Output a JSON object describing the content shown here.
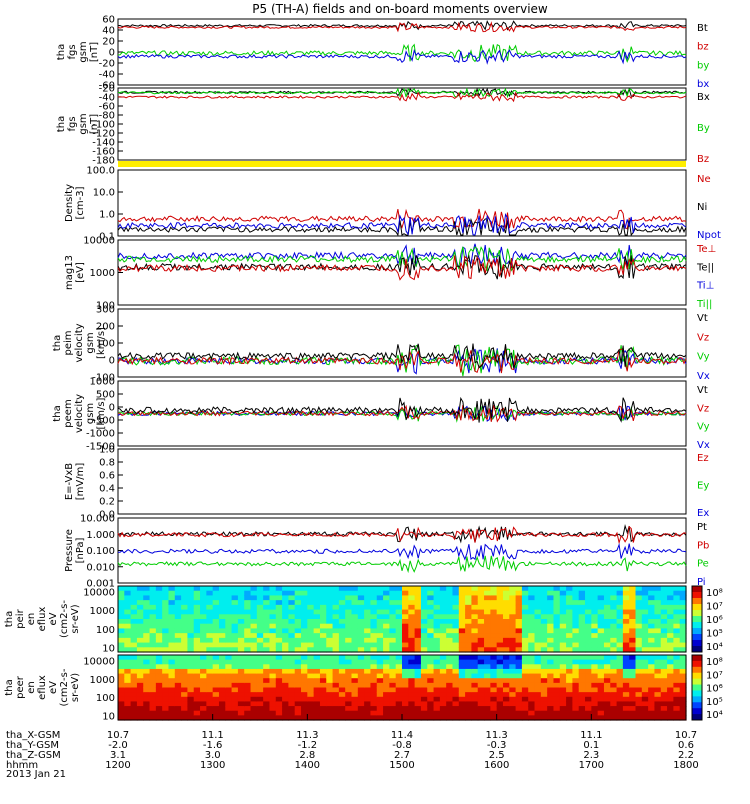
{
  "chart_data": {
    "type": "line",
    "title": "P5 (TH-A) fields and on-board moments overview",
    "panels": [
      {
        "id": "fgs",
        "ylabel": [
          "tha",
          "fgs",
          "gsm",
          "[nT]"
        ],
        "yticks": [
          "60",
          "40",
          "20",
          "0",
          "-20",
          "-40",
          "-60"
        ],
        "ylim": [
          -60,
          60
        ],
        "legend": [
          {
            "name": "Bt",
            "color": "#000000"
          },
          {
            "name": "bz",
            "color": "#d00000"
          },
          {
            "name": "by",
            "color": "#00cc00"
          },
          {
            "name": "bx",
            "color": "#0000dd"
          }
        ],
        "series": [
          {
            "name": "Bt",
            "base": 48,
            "noise": 2,
            "color": "#000000"
          },
          {
            "name": "bz",
            "base": 45,
            "noise": 2,
            "color": "#d00000"
          },
          {
            "name": "by",
            "base": -2,
            "noise": 4,
            "color": "#00cc00"
          },
          {
            "name": "bx",
            "base": -8,
            "noise": 3,
            "color": "#0000dd"
          }
        ]
      },
      {
        "id": "fgs2",
        "ylabel": [
          "tha",
          "fgs",
          "gsm",
          "[nT]"
        ],
        "yticks": [
          "-20",
          "-40",
          "-60",
          "-80",
          "-100",
          "-120",
          "-140",
          "-160",
          "-180"
        ],
        "ylim": [
          -190,
          10
        ],
        "legend": [
          {
            "name": "Bx",
            "color": "#000000"
          },
          {
            "name": "By",
            "color": "#00cc00"
          },
          {
            "name": "Bz",
            "color": "#d00000"
          }
        ],
        "series": [
          {
            "name": "Bx",
            "base": -2,
            "noise": 3,
            "color": "#000000"
          },
          {
            "name": "By",
            "base": -3,
            "noise": 3,
            "color": "#00cc00"
          },
          {
            "name": "Bz",
            "base": -15,
            "noise": 3,
            "color": "#d00000"
          }
        ]
      },
      {
        "id": "density",
        "ylabel": [
          "Density",
          "[cm-3]"
        ],
        "yticks": [
          "100.0",
          "10.0",
          "1.0",
          "0.1"
        ],
        "ylim": [
          0.1,
          100
        ],
        "log": true,
        "legend": [
          {
            "name": "Ne",
            "color": "#d00000"
          },
          {
            "name": "Ni",
            "color": "#000000"
          },
          {
            "name": "Npot",
            "color": "#0000dd"
          }
        ],
        "series": [
          {
            "name": "Ne",
            "base": 0.6,
            "noise": 0.3,
            "color": "#d00000"
          },
          {
            "name": "Ni",
            "base": 0.2,
            "noise": 0.1,
            "color": "#000000"
          },
          {
            "name": "Npot",
            "base": 0.3,
            "noise": 0.1,
            "color": "#0000dd"
          }
        ]
      },
      {
        "id": "temp",
        "ylabel": [
          "mag13",
          "[eV]"
        ],
        "yticks": [
          "10000",
          "1000",
          "100"
        ],
        "ylim": [
          30,
          10000
        ],
        "log": true,
        "legend": [
          {
            "name": "Te⊥",
            "color": "#d00000"
          },
          {
            "name": "Te||",
            "color": "#000000"
          },
          {
            "name": "Ti⊥",
            "color": "#0000dd"
          },
          {
            "name": "Ti||",
            "color": "#00cc00"
          }
        ],
        "series": [
          {
            "name": "Ti⊥",
            "base": 2500,
            "noise": 600,
            "color": "#0000dd"
          },
          {
            "name": "Ti||",
            "base": 1800,
            "noise": 500,
            "color": "#00cc00"
          },
          {
            "name": "Te||",
            "base": 900,
            "noise": 400,
            "color": "#000000"
          },
          {
            "name": "Te⊥",
            "base": 800,
            "noise": 400,
            "color": "#d00000"
          }
        ]
      },
      {
        "id": "peim",
        "ylabel": [
          "tha",
          "peim",
          "velocity",
          "gsm",
          "[km/s]"
        ],
        "yticks": [
          "300",
          "200",
          "100",
          "0",
          "-100"
        ],
        "ylim": [
          -100,
          320
        ],
        "legend": [
          {
            "name": "Vt",
            "color": "#000000"
          },
          {
            "name": "Vz",
            "color": "#d00000"
          },
          {
            "name": "Vy",
            "color": "#00cc00"
          },
          {
            "name": "Vx",
            "color": "#0000dd"
          }
        ],
        "series": [
          {
            "name": "Vx",
            "base": 0,
            "noise": 20,
            "color": "#0000dd"
          },
          {
            "name": "Vy",
            "base": 0,
            "noise": 25,
            "color": "#00cc00"
          },
          {
            "name": "Vz",
            "base": 0,
            "noise": 20,
            "color": "#d00000"
          },
          {
            "name": "Vt",
            "base": 30,
            "noise": 20,
            "color": "#000000"
          }
        ]
      },
      {
        "id": "peem",
        "ylabel": [
          "tha",
          "peem",
          "velocity",
          "gsm",
          "[km/s]"
        ],
        "yticks": [
          "1000",
          "500",
          "0",
          "-500",
          "-1000",
          "-1500"
        ],
        "ylim": [
          -1500,
          1500
        ],
        "legend": [
          {
            "name": "Vt",
            "color": "#000000"
          },
          {
            "name": "Vz",
            "color": "#d00000"
          },
          {
            "name": "Vy",
            "color": "#00cc00"
          },
          {
            "name": "Vx",
            "color": "#0000dd"
          }
        ],
        "series": [
          {
            "name": "Vx",
            "base": 0,
            "noise": 90,
            "color": "#0000dd"
          },
          {
            "name": "Vy",
            "base": 0,
            "noise": 90,
            "color": "#00cc00"
          },
          {
            "name": "Vz",
            "base": 0,
            "noise": 100,
            "color": "#d00000"
          },
          {
            "name": "Vt",
            "base": 150,
            "noise": 150,
            "color": "#000000"
          }
        ]
      },
      {
        "id": "efield",
        "ylabel": [
          "E=-VxB",
          "[mV/m]"
        ],
        "yticks": [
          "1.0",
          "0.8",
          "0.6",
          "0.4",
          "0.2",
          "0.0"
        ],
        "ylim": [
          0,
          1
        ],
        "legend": [
          {
            "name": "Ez",
            "color": "#d00000"
          },
          {
            "name": "Ey",
            "color": "#00cc00"
          },
          {
            "name": "Ex",
            "color": "#0000dd"
          }
        ],
        "series": []
      },
      {
        "id": "pressure",
        "ylabel": [
          "Pressure",
          "[nPa]"
        ],
        "yticks": [
          "10.000",
          "1.000",
          "0.100",
          "0.010",
          "0.001"
        ],
        "ylim": [
          0.001,
          10
        ],
        "log": true,
        "legend": [
          {
            "name": "Pt",
            "color": "#000000"
          },
          {
            "name": "Pb",
            "color": "#d00000"
          },
          {
            "name": "Pe",
            "color": "#00cc00"
          },
          {
            "name": "Pi",
            "color": "#0000dd"
          }
        ],
        "series": [
          {
            "name": "Pt",
            "base": 1.05,
            "noise": 0.05,
            "color": "#000000"
          },
          {
            "name": "Pb",
            "base": 0.95,
            "noise": 0.05,
            "color": "#d00000"
          },
          {
            "name": "Pi",
            "base": 0.09,
            "noise": 0.02,
            "color": "#0000dd"
          },
          {
            "name": "Pe",
            "base": 0.015,
            "noise": 0.006,
            "color": "#00cc00"
          }
        ]
      }
    ],
    "spectrograms": [
      {
        "id": "peir",
        "ylabel": [
          "tha",
          "peir",
          "en",
          "eflux",
          "eV",
          "(cm2-s-",
          "sr-eV)"
        ],
        "yticks": [
          "10000",
          "1000",
          "100",
          "10"
        ]
      },
      {
        "id": "peer",
        "ylabel": [
          "tha",
          "peer",
          "en",
          "eflux",
          "eV",
          "(cm2-s-",
          "sr-eV)"
        ],
        "yticks": [
          "10000",
          "1000",
          "100",
          "10"
        ]
      }
    ],
    "colorbar_labels": [
      "10⁸",
      "10⁷",
      "10⁶",
      "10⁵",
      "10⁴"
    ],
    "colorbar_labels_2": [
      "10⁸",
      "10⁷",
      "10⁶",
      "10⁵",
      "10⁴"
    ],
    "x_axis": {
      "rows": [
        {
          "label": "tha_X-GSM",
          "values": [
            "10.7",
            "11.1",
            "11.3",
            "11.4",
            "11.3",
            "11.1",
            "10.7"
          ]
        },
        {
          "label": "tha_Y-GSM",
          "values": [
            "-2.0",
            "-1.6",
            "-1.2",
            "-0.8",
            "-0.3",
            "0.1",
            "0.6"
          ]
        },
        {
          "label": "tha_Z-GSM",
          "values": [
            "3.1",
            "3.0",
            "2.8",
            "2.7",
            "2.5",
            "2.3",
            "2.2"
          ]
        },
        {
          "label": "hhmm",
          "values": [
            "1200",
            "1300",
            "1400",
            "1500",
            "1600",
            "1700",
            "1800"
          ]
        }
      ],
      "date": "2013 Jan 21"
    }
  }
}
